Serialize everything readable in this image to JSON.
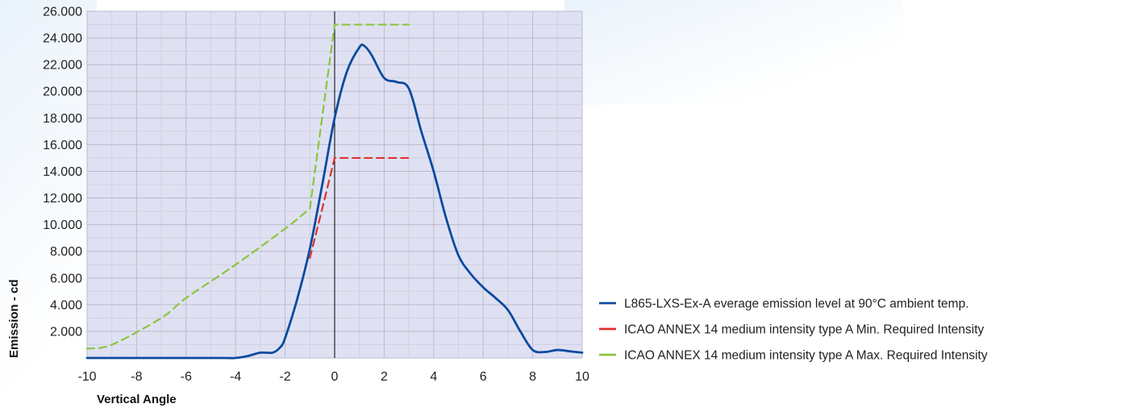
{
  "chart_data": {
    "type": "line",
    "title": "",
    "xlabel": "Vertical Angle",
    "ylabel": "Emission - cd",
    "xlim": [
      -10,
      10
    ],
    "ylim": [
      0,
      26000
    ],
    "x_ticks": [
      -10,
      -8,
      -6,
      -4,
      -2,
      0,
      2,
      4,
      6,
      8,
      10
    ],
    "x_tick_labels": [
      "-10",
      "-8",
      "-6",
      "-4",
      "-2",
      "0",
      "2",
      "4",
      "6",
      "8",
      "10"
    ],
    "y_ticks": [
      2000,
      4000,
      6000,
      8000,
      10000,
      12000,
      14000,
      16000,
      18000,
      20000,
      22000,
      24000,
      26000
    ],
    "y_tick_labels": [
      "2.000",
      "4.000",
      "6.000",
      "8.000",
      "10.000",
      "12.000",
      "14.000",
      "16.000",
      "18.000",
      "20.000",
      "22.000",
      "24.000",
      "26.000"
    ],
    "grid": true,
    "legend_position": "right",
    "series": [
      {
        "name": "L865-LXS-Ex-A everage emission level at 90°C ambient temp.",
        "color": "#0d4a9e",
        "dash": "solid",
        "points": [
          [
            -10,
            0
          ],
          [
            -8,
            0
          ],
          [
            -6,
            0
          ],
          [
            -4.5,
            0
          ],
          [
            -4,
            0
          ],
          [
            -3.5,
            150
          ],
          [
            -3,
            400
          ],
          [
            -2.5,
            400
          ],
          [
            -2.2,
            800
          ],
          [
            -2,
            1500
          ],
          [
            -1.5,
            4500
          ],
          [
            -1,
            8200
          ],
          [
            -0.5,
            13000
          ],
          [
            0,
            18000
          ],
          [
            0.5,
            21500
          ],
          [
            1,
            23300
          ],
          [
            1.2,
            23400
          ],
          [
            1.5,
            22700
          ],
          [
            2,
            21000
          ],
          [
            2.5,
            20700
          ],
          [
            3,
            20200
          ],
          [
            3.5,
            17000
          ],
          [
            4,
            14000
          ],
          [
            4.5,
            10500
          ],
          [
            5,
            7700
          ],
          [
            5.5,
            6300
          ],
          [
            6,
            5300
          ],
          [
            6.5,
            4500
          ],
          [
            7,
            3600
          ],
          [
            7.5,
            2000
          ],
          [
            8,
            600
          ],
          [
            8.5,
            450
          ],
          [
            9,
            600
          ],
          [
            9.5,
            500
          ],
          [
            10,
            400
          ]
        ]
      },
      {
        "name": "ICAO ANNEX 14 medium intensity type A Min. Required Intensity",
        "color": "#e03030",
        "dash": "dashed",
        "points": [
          [
            -1,
            7500
          ],
          [
            -0.5,
            11200
          ],
          [
            0,
            15000
          ],
          [
            3,
            15000
          ]
        ]
      },
      {
        "name": "ICAO ANNEX 14 medium intensity type A Max. Required Intensity",
        "color": "#8ac53e",
        "dash": "dashed",
        "points": [
          [
            -10,
            700
          ],
          [
            -9,
            1000
          ],
          [
            -7,
            3000
          ],
          [
            -6,
            4500
          ],
          [
            -4,
            7000
          ],
          [
            -2,
            9700
          ],
          [
            -1,
            11200
          ],
          [
            0,
            25000
          ],
          [
            3,
            25000
          ]
        ]
      }
    ]
  }
}
